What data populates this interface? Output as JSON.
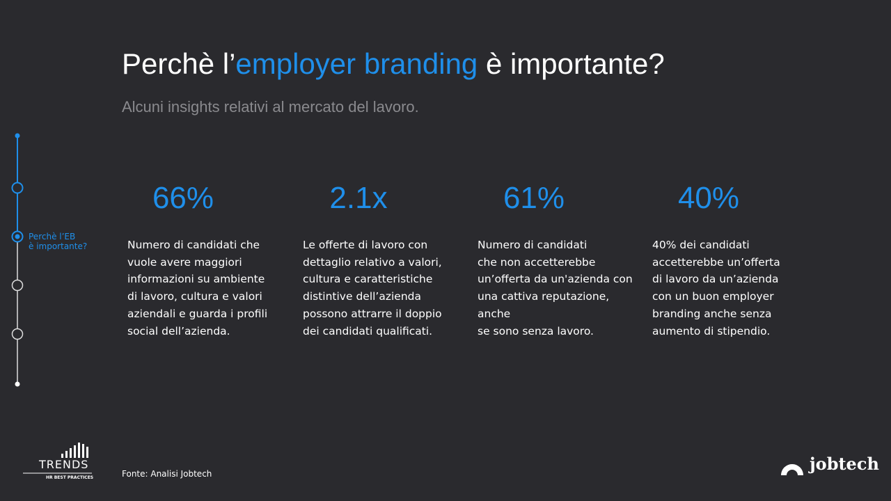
{
  "header": {
    "title": {
      "before": "Perchè l’",
      "highlight": "employer branding",
      "after": " è importante?"
    },
    "subtitle": "Alcuni insights relativi al mercato del lavoro."
  },
  "sidebar": {
    "active_label": [
      "Perchè l’EB",
      "è importante?"
    ]
  },
  "stats": [
    {
      "value": "66%",
      "lines": [
        "Numero di candidati che",
        "vuole avere maggiori",
        "informazioni su ambiente",
        "di lavoro, cultura e valori",
        "aziendali e guarda i profili",
        "social dell’azienda."
      ]
    },
    {
      "value": "2.1x",
      "lines": [
        "Le offerte di lavoro con",
        "dettaglio relativo a valori,",
        "cultura e caratteristiche",
        "distintive dell’azienda",
        "possono attrarre il doppio",
        "dei candidati qualificati."
      ]
    },
    {
      "value": "61%",
      "lines": [
        "Numero di candidati",
        "che non accetterebbe",
        "un’offerta da un'azienda con",
        "una cattiva reputazione,",
        "anche",
        "se sono senza lavoro."
      ]
    },
    {
      "value": "40%",
      "lines": [
        "40% dei candidati",
        "accetterebbe un’offerta",
        "di lavoro da un’azienda",
        "con un buon employer",
        "branding anche senza",
        "aumento di stipendio."
      ]
    }
  ],
  "footer": {
    "source": "Fonte: Analisi Jobtech",
    "logo_left": {
      "name": "TRENDS",
      "tagline": "HR BEST PRACTICES"
    },
    "logo_right": "jobtech"
  }
}
